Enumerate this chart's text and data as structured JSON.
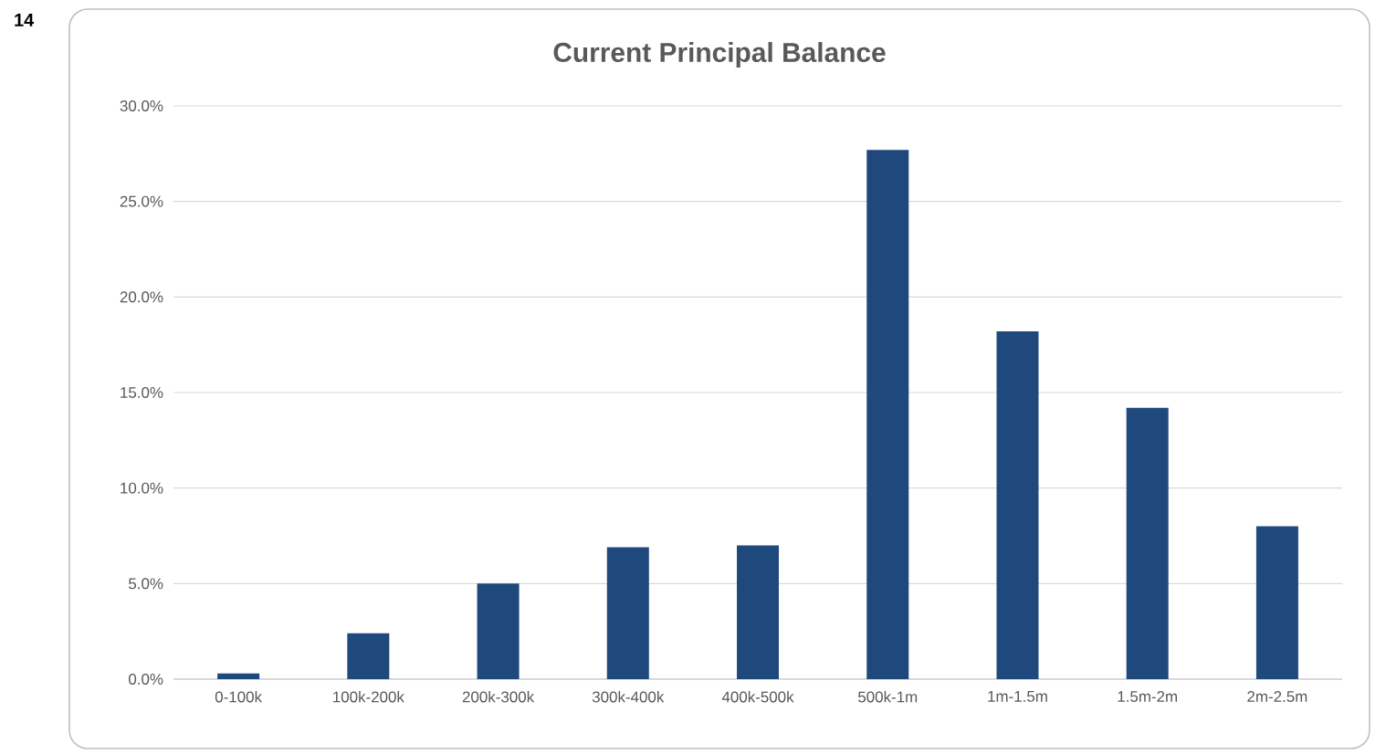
{
  "chart_data": {
    "type": "bar",
    "title": "Current Principal Balance",
    "categories": [
      "0-100k",
      "100k-200k",
      "200k-300k",
      "300k-400k",
      "400k-500k",
      "500k-1m",
      "1m-1.5m",
      "1.5m-2m",
      "2m-2.5m"
    ],
    "values": [
      0.3,
      2.4,
      5.0,
      6.9,
      7.0,
      27.7,
      18.2,
      14.2,
      8.0
    ],
    "color": "#1f497d",
    "ylim": [
      0,
      30
    ],
    "yticks": [
      {
        "value": 0,
        "label": "0.0%"
      },
      {
        "value": 5,
        "label": "5.0%"
      },
      {
        "value": 10,
        "label": "10.0%"
      },
      {
        "value": 15,
        "label": "15.0%"
      },
      {
        "value": 20,
        "label": "20.0%"
      },
      {
        "value": 25,
        "label": "25.0%"
      },
      {
        "value": 30,
        "label": "30.0%"
      }
    ],
    "grid": "y",
    "annotations": [
      "14"
    ]
  }
}
